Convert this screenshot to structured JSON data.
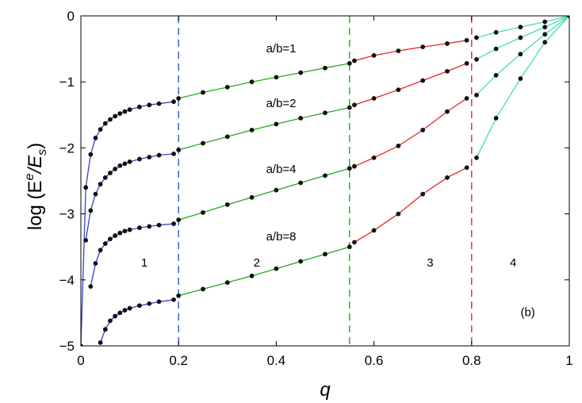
{
  "chart_data": {
    "type": "line",
    "title": "",
    "xlabel": "q",
    "ylabel": "log (E",
    "ylabel_sup": "e",
    "ylabel_mid": "/E",
    "ylabel_sub": "s",
    "ylabel_end": ")",
    "xlim": [
      0,
      1
    ],
    "ylim": [
      -5,
      0
    ],
    "xticks": [
      0,
      0.2,
      0.4,
      0.6,
      0.8,
      1
    ],
    "xtick_labels": [
      "0",
      "0.2",
      "0.4",
      "0.6",
      "0.8",
      "1"
    ],
    "yticks": [
      0,
      -1,
      -2,
      -3,
      -4,
      -5
    ],
    "ytick_labels": [
      "0",
      "−1",
      "−2",
      "−3",
      "−4",
      "−5"
    ],
    "grid": false,
    "legend": "none",
    "region_boundaries": [
      {
        "x": 0.2,
        "color": "#3355cc"
      },
      {
        "x": 0.55,
        "color": "#22aa22"
      },
      {
        "x": 0.8,
        "color": "#ee2222"
      }
    ],
    "region_labels": [
      {
        "text": "1",
        "x": 0.13,
        "y": -3.8
      },
      {
        "text": "2",
        "x": 0.36,
        "y": -3.8
      },
      {
        "text": "3",
        "x": 0.715,
        "y": -3.8
      },
      {
        "text": "4",
        "x": 0.885,
        "y": -3.8
      }
    ],
    "panel_label": {
      "text": "(b)",
      "x": 0.915,
      "y": -4.55
    },
    "region_colors": {
      "1": "#3344cc",
      "2": "#22aa22",
      "3": "#ee2222",
      "4": "#44ddbb"
    },
    "series": [
      {
        "name": "a/b=1",
        "label_pos": {
          "x": 0.41,
          "y": -0.55
        },
        "regions": [
          {
            "region": 1,
            "x": [
              0.0,
              0.01,
              0.02,
              0.03,
              0.04,
              0.05,
              0.06,
              0.07,
              0.08,
              0.09,
              0.1,
              0.12,
              0.14,
              0.16,
              0.19
            ],
            "y": [
              -5,
              -2.6,
              -2.1,
              -1.85,
              -1.72,
              -1.63,
              -1.57,
              -1.52,
              -1.48,
              -1.45,
              -1.42,
              -1.38,
              -1.35,
              -1.33,
              -1.3
            ]
          },
          {
            "region": 2,
            "x": [
              0.2,
              0.25,
              0.3,
              0.35,
              0.4,
              0.45,
              0.5,
              0.55
            ],
            "y": [
              -1.25,
              -1.16,
              -1.08,
              -1.0,
              -0.93,
              -0.86,
              -0.79,
              -0.72
            ]
          },
          {
            "region": 3,
            "x": [
              0.56,
              0.6,
              0.65,
              0.7,
              0.75,
              0.79
            ],
            "y": [
              -0.68,
              -0.6,
              -0.53,
              -0.47,
              -0.42,
              -0.37
            ]
          },
          {
            "region": 4,
            "x": [
              0.81,
              0.85,
              0.9,
              0.95,
              1.0
            ],
            "y": [
              -0.33,
              -0.25,
              -0.17,
              -0.09,
              0.0
            ]
          }
        ]
      },
      {
        "name": "a/b=2",
        "label_pos": {
          "x": 0.41,
          "y": -1.38
        },
        "regions": [
          {
            "region": 1,
            "x": [
              0.01,
              0.02,
              0.03,
              0.04,
              0.05,
              0.06,
              0.07,
              0.08,
              0.09,
              0.1,
              0.12,
              0.14,
              0.16,
              0.19
            ],
            "y": [
              -3.4,
              -2.95,
              -2.7,
              -2.55,
              -2.45,
              -2.38,
              -2.32,
              -2.27,
              -2.24,
              -2.21,
              -2.17,
              -2.14,
              -2.11,
              -2.09
            ]
          },
          {
            "region": 2,
            "x": [
              0.2,
              0.25,
              0.3,
              0.35,
              0.4,
              0.45,
              0.5,
              0.55
            ],
            "y": [
              -2.03,
              -1.93,
              -1.83,
              -1.73,
              -1.64,
              -1.55,
              -1.47,
              -1.39
            ]
          },
          {
            "region": 3,
            "x": [
              0.56,
              0.6,
              0.65,
              0.7,
              0.75,
              0.79
            ],
            "y": [
              -1.35,
              -1.25,
              -1.12,
              -0.98,
              -0.84,
              -0.72
            ]
          },
          {
            "region": 4,
            "x": [
              0.81,
              0.85,
              0.9,
              0.95,
              1.0
            ],
            "y": [
              -0.66,
              -0.5,
              -0.33,
              -0.17,
              0.0
            ]
          }
        ]
      },
      {
        "name": "a/b=4",
        "label_pos": {
          "x": 0.41,
          "y": -2.38
        },
        "regions": [
          {
            "region": 1,
            "x": [
              0.02,
              0.03,
              0.04,
              0.05,
              0.06,
              0.07,
              0.08,
              0.09,
              0.1,
              0.12,
              0.14,
              0.16,
              0.19
            ],
            "y": [
              -4.1,
              -3.75,
              -3.55,
              -3.45,
              -3.38,
              -3.33,
              -3.29,
              -3.26,
              -3.24,
              -3.21,
              -3.19,
              -3.17,
              -3.15
            ]
          },
          {
            "region": 2,
            "x": [
              0.2,
              0.25,
              0.3,
              0.35,
              0.4,
              0.45,
              0.5,
              0.55
            ],
            "y": [
              -3.09,
              -2.98,
              -2.86,
              -2.75,
              -2.64,
              -2.53,
              -2.42,
              -2.31
            ]
          },
          {
            "region": 3,
            "x": [
              0.56,
              0.6,
              0.65,
              0.7,
              0.75,
              0.79
            ],
            "y": [
              -2.28,
              -2.15,
              -1.97,
              -1.73,
              -1.45,
              -1.25
            ]
          },
          {
            "region": 4,
            "x": [
              0.81,
              0.85,
              0.9,
              0.95,
              1.0
            ],
            "y": [
              -1.2,
              -0.9,
              -0.58,
              -0.28,
              0.0
            ]
          }
        ]
      },
      {
        "name": "a/b=8",
        "label_pos": {
          "x": 0.41,
          "y": -3.4
        },
        "regions": [
          {
            "region": 1,
            "x": [
              0.04,
              0.05,
              0.06,
              0.07,
              0.08,
              0.09,
              0.1,
              0.12,
              0.14,
              0.16,
              0.19
            ],
            "y": [
              -4.95,
              -4.75,
              -4.62,
              -4.55,
              -4.5,
              -4.46,
              -4.43,
              -4.39,
              -4.36,
              -4.33,
              -4.3
            ]
          },
          {
            "region": 2,
            "x": [
              0.2,
              0.25,
              0.3,
              0.35,
              0.4,
              0.45,
              0.5,
              0.55
            ],
            "y": [
              -4.24,
              -4.14,
              -4.04,
              -3.94,
              -3.83,
              -3.72,
              -3.61,
              -3.5
            ]
          },
          {
            "region": 3,
            "x": [
              0.56,
              0.6,
              0.65,
              0.7,
              0.75,
              0.79
            ],
            "y": [
              -3.43,
              -3.25,
              -3.0,
              -2.7,
              -2.45,
              -2.3
            ]
          },
          {
            "region": 4,
            "x": [
              0.81,
              0.85,
              0.9,
              0.95,
              1.0
            ],
            "y": [
              -2.15,
              -1.55,
              -0.95,
              -0.4,
              0.0
            ]
          }
        ]
      }
    ]
  }
}
